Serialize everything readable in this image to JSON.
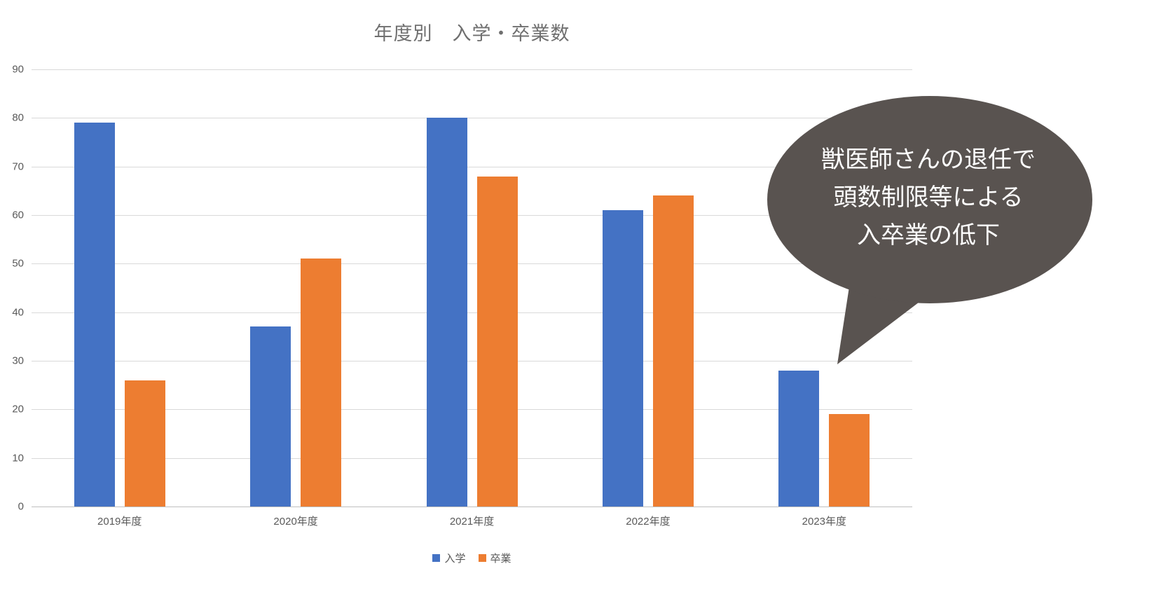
{
  "chart": {
    "callout": {
      "lines": [
        "獣医師さんの退任で",
        "頭数制限等による",
        "入卒業の低下"
      ],
      "bg_color": "#595350",
      "text_color": "#FFFFFF"
    },
    "colors": {
      "gridline": "#D9D9D9",
      "axis_text": "#595959",
      "title_text": "#6F6F6F"
    }
  },
  "chart_data": {
    "type": "bar",
    "title": "年度別　入学・卒業数",
    "categories": [
      "2019年度",
      "2020年度",
      "2021年度",
      "2022年度",
      "2023年度"
    ],
    "series": [
      {
        "name": "入学",
        "color": "#4472C4",
        "values": [
          79,
          37,
          80,
          61,
          28
        ]
      },
      {
        "name": "卒業",
        "color": "#ED7D31",
        "values": [
          26,
          51,
          68,
          64,
          19
        ]
      }
    ],
    "xlabel": "",
    "ylabel": "",
    "ylim": [
      0,
      90
    ],
    "ytick_interval": 10,
    "grid": true,
    "legend_position": "bottom"
  }
}
